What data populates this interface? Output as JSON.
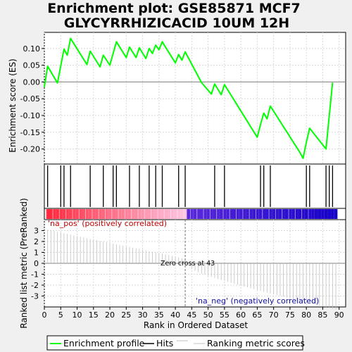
{
  "title_line1": "Enrichment plot: GSE85871 MCF7",
  "title_line2": "GLYCYRRHIZICACID 10UM 12H",
  "colors": {
    "es_line": "#00ff00",
    "hits": "#000000",
    "metric": "#c0c0c0",
    "pos_text": "#c00000",
    "neg_text": "#1010a0"
  },
  "legend": {
    "enrichment_profile": "Enrichment profile",
    "hits": "Hits",
    "ranking_metric": "Ranking metric scores"
  },
  "annotations": {
    "pos": "'na_pos' (positively correlated)",
    "neg": "'na_neg' (negatively correlated)",
    "zero_cross": "Zero cross at 43"
  },
  "chart_data": {
    "type": "line",
    "title": "Enrichment plot: GSE85871 MCF7 GLYCYRRHIZICACID 10UM 12H",
    "xlabel": "Rank in Ordered Dataset",
    "ylabel_es": "Enrichment score (ES)",
    "ylabel_metric": "Ranked list metric (PreRanked)",
    "xlim": [
      0,
      92
    ],
    "ylim_es": [
      -0.245,
      0.148
    ],
    "ylim_metric": [
      -4,
      4
    ],
    "x_ticks": [
      0,
      5,
      10,
      15,
      20,
      25,
      30,
      35,
      40,
      45,
      50,
      55,
      60,
      65,
      70,
      75,
      80,
      85,
      90
    ],
    "es_ticks": [
      0.1,
      0.05,
      0.0,
      -0.05,
      -0.1,
      -0.15,
      -0.2
    ],
    "es_tick_labels": [
      "0.10",
      "0.05",
      "0.00",
      "-0.05",
      "-0.10",
      "-0.15",
      "-0.20"
    ],
    "metric_ticks": [
      3,
      2,
      1,
      0,
      -1,
      -2,
      -3
    ],
    "grid": true,
    "es_series": {
      "name": "Enrichment profile",
      "x": [
        0,
        1,
        4,
        6,
        7,
        8,
        13,
        14,
        17,
        18,
        20,
        22,
        25,
        26,
        28,
        29,
        31,
        32,
        33,
        34,
        35,
        36,
        37,
        40,
        41,
        42,
        43,
        48,
        51,
        52,
        54,
        55,
        65,
        66,
        67,
        68,
        69,
        78,
        79,
        80,
        81,
        86,
        87,
        88
      ],
      "y": [
        -0.015,
        0.047,
        -0.003,
        0.098,
        0.08,
        0.13,
        0.052,
        0.092,
        0.045,
        0.08,
        0.05,
        0.12,
        0.073,
        0.104,
        0.073,
        0.102,
        0.07,
        0.1,
        0.085,
        0.11,
        0.096,
        0.12,
        0.104,
        0.057,
        0.082,
        0.065,
        0.09,
        -0.002,
        -0.036,
        -0.006,
        -0.038,
        -0.008,
        -0.165,
        -0.127,
        -0.093,
        -0.11,
        -0.072,
        -0.21,
        -0.228,
        -0.18,
        -0.138,
        -0.2,
        -0.1,
        -0.002
      ]
    },
    "hit_positions": [
      1,
      5,
      6,
      8,
      14,
      18,
      21,
      22,
      26,
      29,
      32,
      34,
      36,
      41,
      43,
      52,
      55,
      66,
      67,
      69,
      80,
      81,
      86,
      87,
      88
    ],
    "metric_series": {
      "zero_cross": 43,
      "n": 89,
      "max": 3.1,
      "min": -3.4
    }
  }
}
